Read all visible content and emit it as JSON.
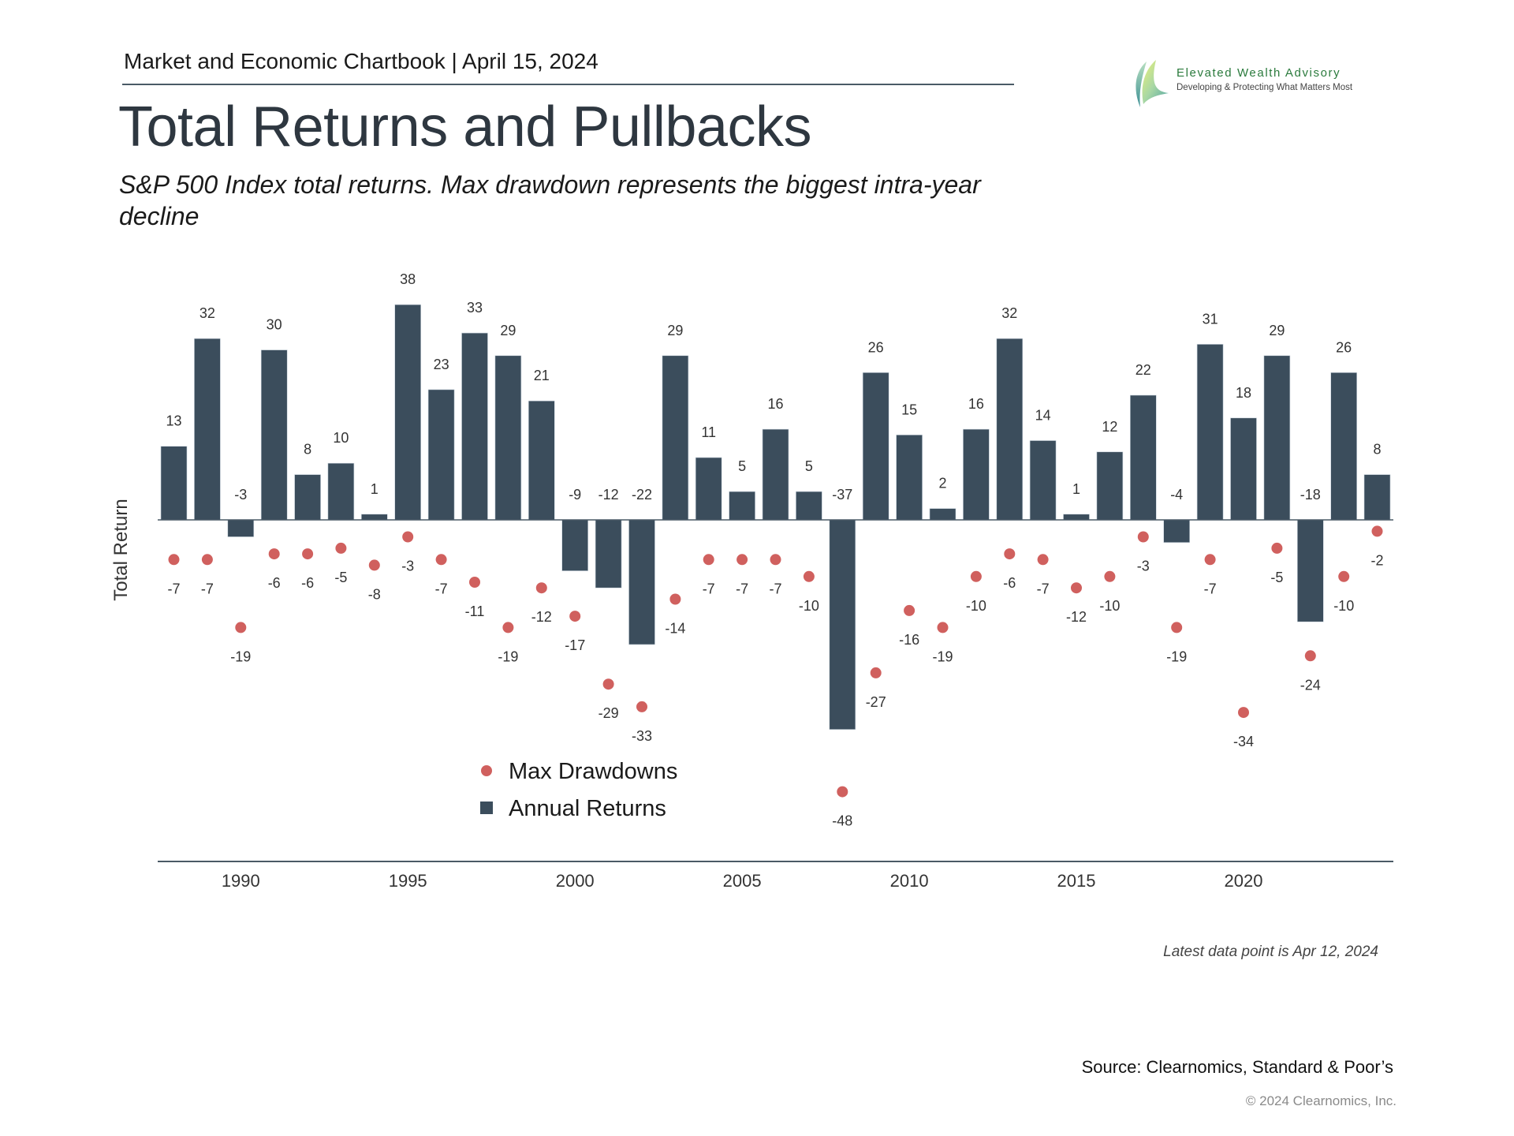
{
  "header": {
    "text": "Market and Economic Chartbook | April 15, 2024",
    "title": "Total Returns and Pullbacks",
    "subtitle": "S&P 500 Index total returns. Max drawdown represents the biggest intra-year decline"
  },
  "logo": {
    "name": "Elevated Wealth Advisory",
    "tagline": "Developing & Protecting What Matters Most"
  },
  "colors": {
    "bar": "#3b4d5c",
    "dot": "#d0605e",
    "label": "#333333",
    "axis": "#4a5a66"
  },
  "chart_data": {
    "type": "bar",
    "title": "Total Returns and Pullbacks",
    "xlabel": "",
    "ylabel": "Total Return",
    "ylim": [
      -50,
      40
    ],
    "grid": false,
    "legend_position": "bottom-left",
    "x": [
      1988,
      1989,
      1990,
      1991,
      1992,
      1993,
      1994,
      1995,
      1996,
      1997,
      1998,
      1999,
      2000,
      2001,
      2002,
      2003,
      2004,
      2005,
      2006,
      2007,
      2008,
      2009,
      2010,
      2011,
      2012,
      2013,
      2014,
      2015,
      2016,
      2017,
      2018,
      2019,
      2020,
      2021,
      2022,
      2023,
      2024
    ],
    "xticks": [
      "1990",
      "1995",
      "2000",
      "2005",
      "2010",
      "2015",
      "2020"
    ],
    "series": [
      {
        "name": "Annual Returns",
        "type": "bar",
        "values": [
          13,
          32,
          -3,
          30,
          8,
          10,
          1,
          38,
          23,
          33,
          29,
          21,
          -9,
          -12,
          -22,
          29,
          11,
          5,
          16,
          5,
          -37,
          26,
          15,
          2,
          16,
          32,
          14,
          1,
          12,
          22,
          -4,
          31,
          18,
          29,
          -18,
          26,
          8
        ]
      },
      {
        "name": "Max Drawdowns",
        "type": "scatter",
        "values": [
          -7,
          -7,
          -19,
          -6,
          -6,
          -5,
          -8,
          -3,
          -7,
          -11,
          -19,
          -12,
          -17,
          -29,
          -33,
          -14,
          -7,
          -7,
          -7,
          -10,
          -48,
          -27,
          -16,
          -19,
          -10,
          -6,
          -7,
          -12,
          -10,
          -3,
          -19,
          -7,
          -34,
          -5,
          -24,
          -10,
          -2
        ]
      }
    ],
    "legend": [
      "Max Drawdowns",
      "Annual Returns"
    ]
  },
  "footer": {
    "note": "Latest data point is Apr 12, 2024",
    "source": "Source: Clearnomics, Standard & Poor’s",
    "copyright": "© 2024 Clearnomics, Inc."
  }
}
